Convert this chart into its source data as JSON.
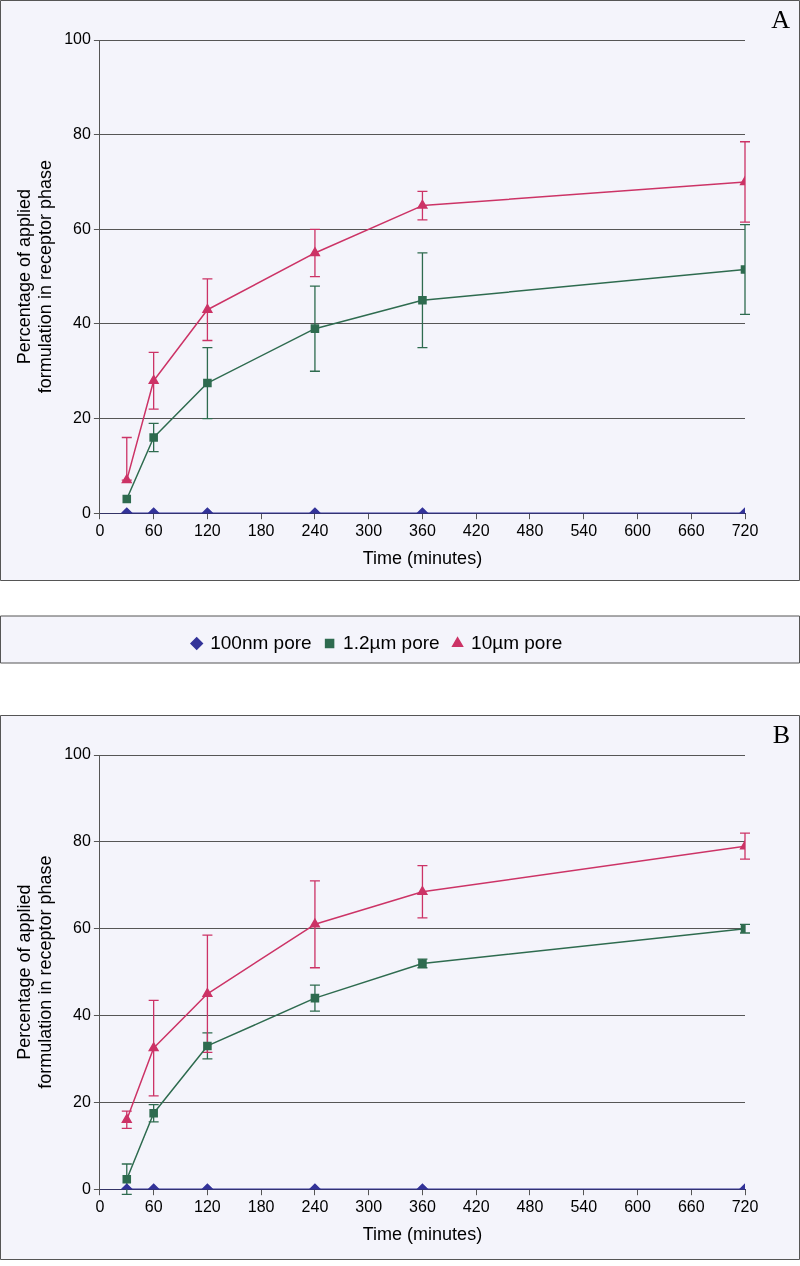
{
  "chart_data": [
    {
      "type": "line",
      "annotations": [
        "A"
      ],
      "xlabel": "Time (minutes)",
      "ylabel": "Percentage of applied formulation in receptor phase",
      "x": [
        30,
        60,
        120,
        240,
        360,
        720
      ],
      "xlim": [
        0,
        720
      ],
      "xticks": [
        0,
        60,
        120,
        180,
        240,
        300,
        360,
        420,
        480,
        540,
        600,
        660,
        720
      ],
      "ylim": [
        0,
        100
      ],
      "yticks": [
        0,
        20,
        40,
        60,
        80,
        100
      ],
      "grid": "y",
      "legend": "bottom",
      "line_style": "solid",
      "series": [
        {
          "name": "100nm pore",
          "color": "#333399",
          "marker": "diamond",
          "values": [
            0,
            0,
            0,
            0,
            0,
            0
          ]
        },
        {
          "name": "1.2µm pore",
          "color": "#2e6b4f",
          "marker": "square",
          "values": [
            3,
            16,
            27.5,
            39,
            45,
            51.5
          ],
          "errors": [
            null,
            3,
            7.5,
            9,
            10,
            9.5
          ]
        },
        {
          "name": "10µm pore",
          "color": "#cc3366",
          "marker": "triangle",
          "values": [
            7,
            28,
            43,
            55,
            65,
            70
          ],
          "errors": [
            [
              7,
              16
            ],
            6,
            6.5,
            5,
            3,
            8.5
          ]
        }
      ]
    },
    {
      "type": "line",
      "annotations": [
        "B"
      ],
      "xlabel": "Time (minutes)",
      "ylabel": "Percentage of applied formulation in receptor phase",
      "x": [
        30,
        60,
        120,
        240,
        360,
        720
      ],
      "xlim": [
        0,
        720
      ],
      "xticks": [
        0,
        60,
        120,
        180,
        240,
        300,
        360,
        420,
        480,
        540,
        600,
        660,
        720
      ],
      "ylim": [
        0,
        100
      ],
      "yticks": [
        0,
        20,
        40,
        60,
        80,
        100
      ],
      "grid": "y",
      "line_style": "solid",
      "series": [
        {
          "color": "#333399",
          "marker": "diamond",
          "values": [
            0,
            0,
            0,
            0,
            0,
            0
          ]
        },
        {
          "color": "#2e6b4f",
          "marker": "square",
          "values": [
            2.3,
            17.5,
            33,
            44,
            52,
            60
          ],
          "errors": [
            3.5,
            2,
            3,
            3,
            1,
            1
          ]
        },
        {
          "color": "#cc3366",
          "marker": "triangle",
          "values": [
            16,
            32.5,
            45,
            61,
            68.5,
            79
          ],
          "errors": [
            2,
            11,
            13.5,
            10,
            6,
            3
          ]
        }
      ]
    }
  ]
}
